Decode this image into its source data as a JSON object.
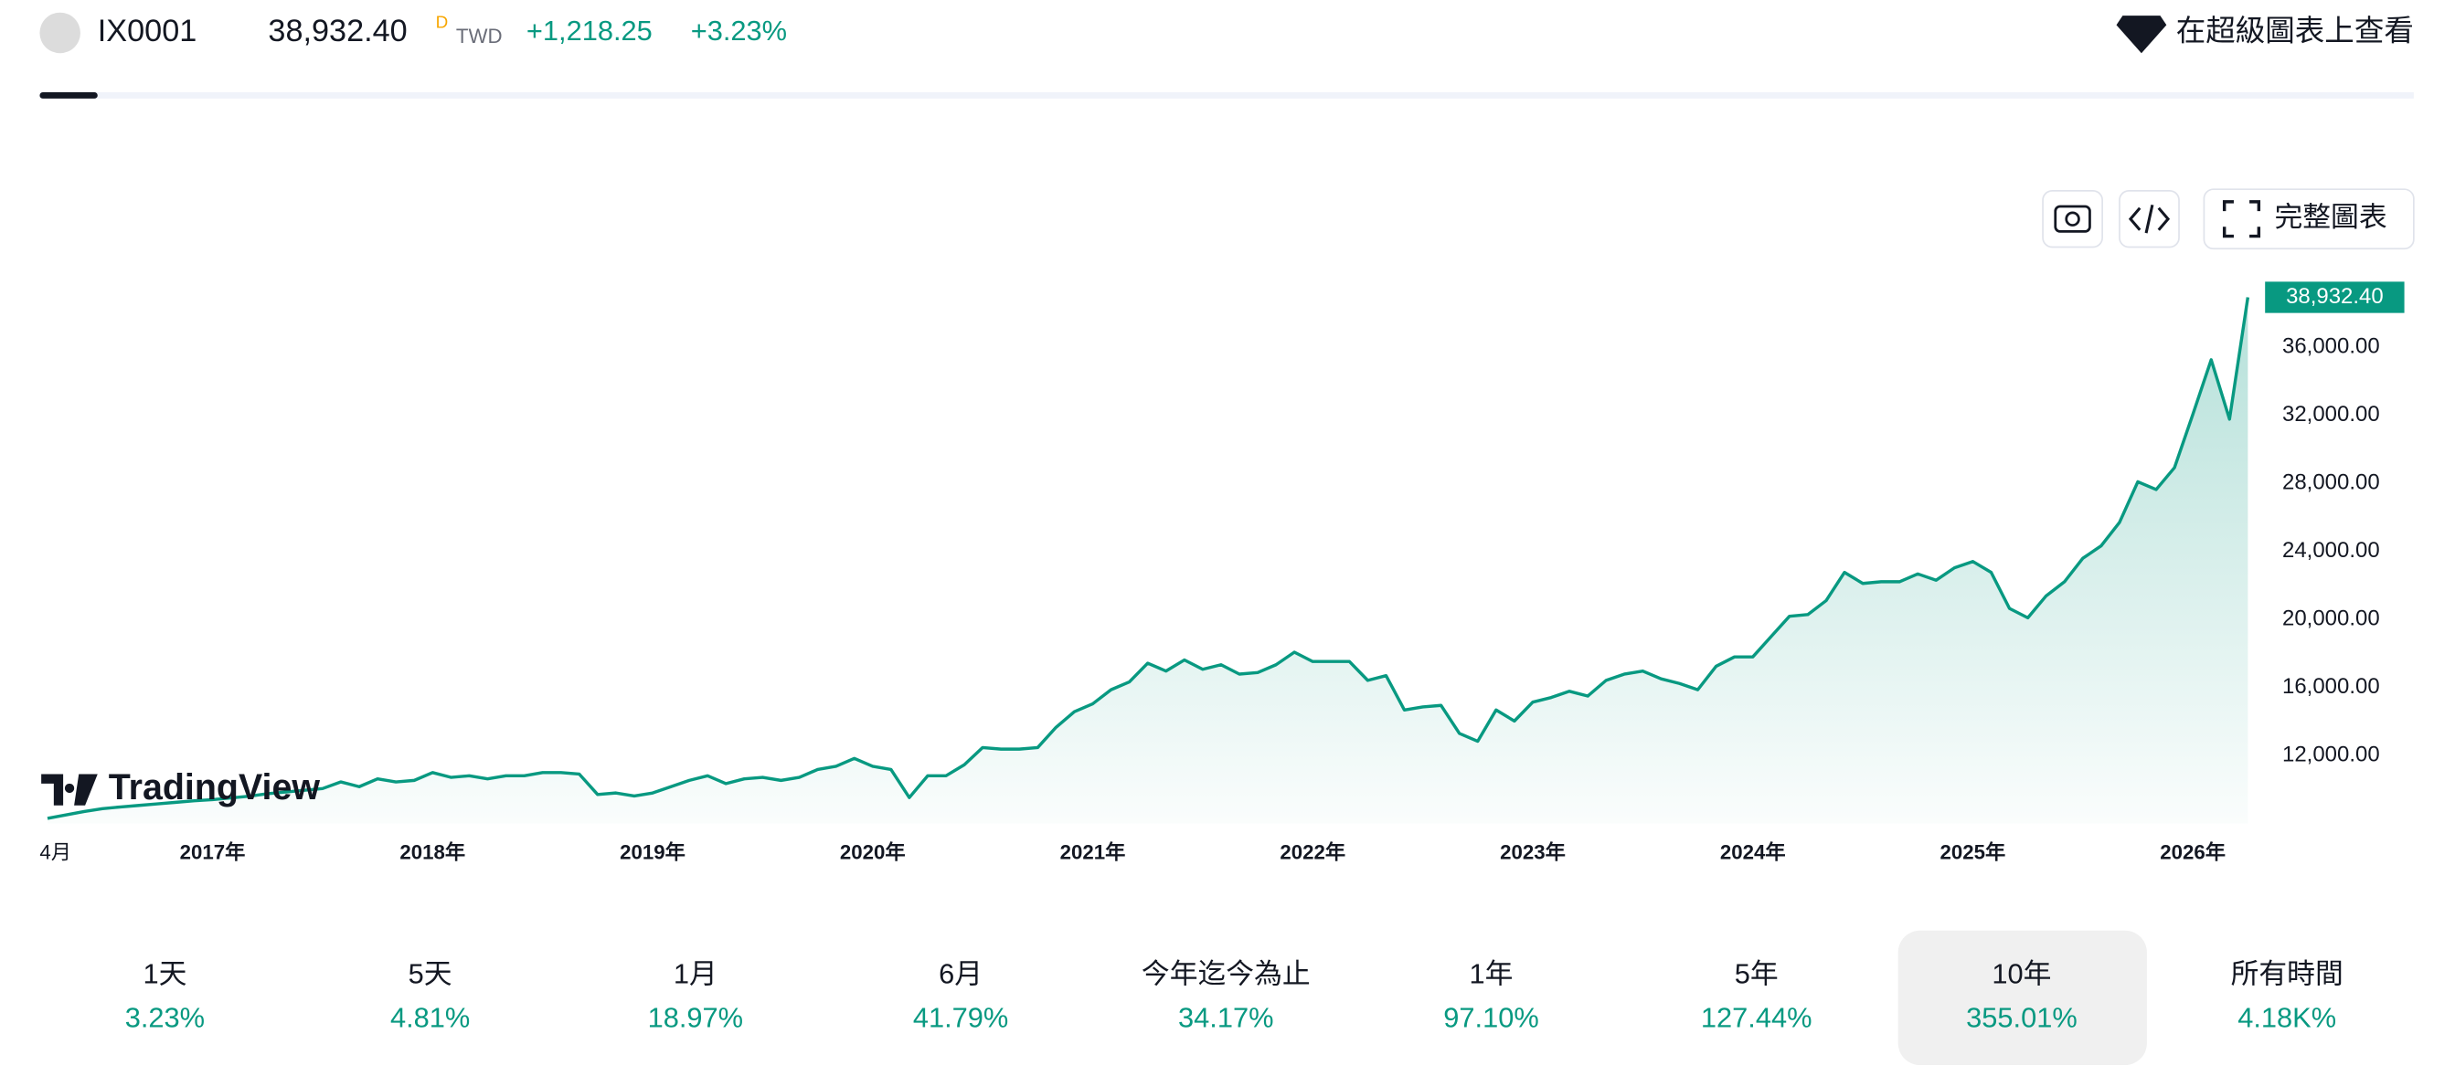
{
  "header": {
    "symbol": "IX0001",
    "price": "38,932.40",
    "interval": "D",
    "currency": "TWD",
    "change": "+1,218.25",
    "change_percent": "+3.23%",
    "supercharts_link": "在超級圖表上查看"
  },
  "toolbar": {
    "full_chart": "完整圖表"
  },
  "logo": "TradingView",
  "chart_data": {
    "type": "area",
    "color": "#089981",
    "categories": [
      "4月",
      null,
      null,
      null,
      null,
      null,
      null,
      null,
      null,
      "2017年",
      null,
      null,
      null,
      null,
      null,
      null,
      null,
      null,
      null,
      null,
      null,
      "2018年",
      null,
      null,
      null,
      null,
      null,
      null,
      null,
      null,
      null,
      null,
      null,
      "2019年",
      null,
      null,
      null,
      null,
      null,
      null,
      null,
      null,
      null,
      null,
      null,
      "2020年",
      null,
      null,
      null,
      null,
      null,
      null,
      null,
      null,
      null,
      null,
      null,
      "2021年",
      null,
      null,
      null,
      null,
      null,
      null,
      null,
      null,
      null,
      null,
      null,
      "2022年",
      null,
      null,
      null,
      null,
      null,
      null,
      null,
      null,
      null,
      null,
      null,
      "2023年",
      null,
      null,
      null,
      null,
      null,
      null,
      null,
      null,
      null,
      null,
      null,
      "2024年",
      null,
      null,
      null,
      null,
      null,
      null,
      null,
      null,
      null,
      null,
      null,
      "2025年",
      null,
      null,
      null,
      null,
      null,
      null,
      null,
      null,
      null,
      null,
      null,
      "2026年",
      null,
      null,
      null
    ],
    "values": [
      8300,
      8500,
      8700,
      8870,
      8970,
      9060,
      9150,
      9240,
      9330,
      9400,
      9500,
      9600,
      9750,
      9850,
      9950,
      10050,
      10440,
      10160,
      10620,
      10440,
      10530,
      10990,
      10710,
      10800,
      10620,
      10800,
      10800,
      10990,
      10990,
      10900,
      9700,
      9790,
      9610,
      9790,
      10160,
      10530,
      10800,
      10340,
      10620,
      10710,
      10530,
      10710,
      11170,
      11360,
      11820,
      11360,
      11170,
      9520,
      10800,
      10800,
      11450,
      12460,
      12370,
      12370,
      12460,
      13650,
      14570,
      15030,
      15860,
      16320,
      17420,
      16960,
      17610,
      17060,
      17330,
      16780,
      16870,
      17330,
      18070,
      17520,
      17520,
      17520,
      16410,
      16690,
      14670,
      14850,
      14940,
      13290,
      12830,
      14670,
      14020,
      15130,
      15400,
      15770,
      15490,
      16410,
      16780,
      16960,
      16500,
      16230,
      15860,
      17240,
      17790,
      17790,
      18990,
      20180,
      20280,
      21100,
      22760,
      22110,
      22210,
      22210,
      22670,
      22300,
      23030,
      23400,
      22760,
      20640,
      20090,
      21380,
      22210,
      23590,
      24320,
      25700,
      28090,
      27630,
      28920,
      32050,
      35260,
      31770,
      38932.4
    ],
    "ylim": [
      8000,
      40000
    ],
    "yticks": [
      {
        "value": 12000,
        "label": "12,000.00"
      },
      {
        "value": 16000,
        "label": "16,000.00"
      },
      {
        "value": 20000,
        "label": "20,000.00"
      },
      {
        "value": 24000,
        "label": "24,000.00"
      },
      {
        "value": 28000,
        "label": "28,000.00"
      },
      {
        "value": 32000,
        "label": "32,000.00"
      },
      {
        "value": 36000,
        "label": "36,000.00"
      }
    ],
    "grid": false
  },
  "periods": [
    {
      "label": "1天",
      "change": "3.23%"
    },
    {
      "label": "5天",
      "change": "4.81%"
    },
    {
      "label": "1月",
      "change": "18.97%"
    },
    {
      "label": "6月",
      "change": "41.79%"
    },
    {
      "label": "今年迄今為止",
      "change": "34.17%"
    },
    {
      "label": "1年",
      "change": "97.10%"
    },
    {
      "label": "5年",
      "change": "127.44%"
    },
    {
      "label": "10年",
      "change": "355.01%"
    },
    {
      "label": "所有時間",
      "change": "4.18K%"
    }
  ]
}
